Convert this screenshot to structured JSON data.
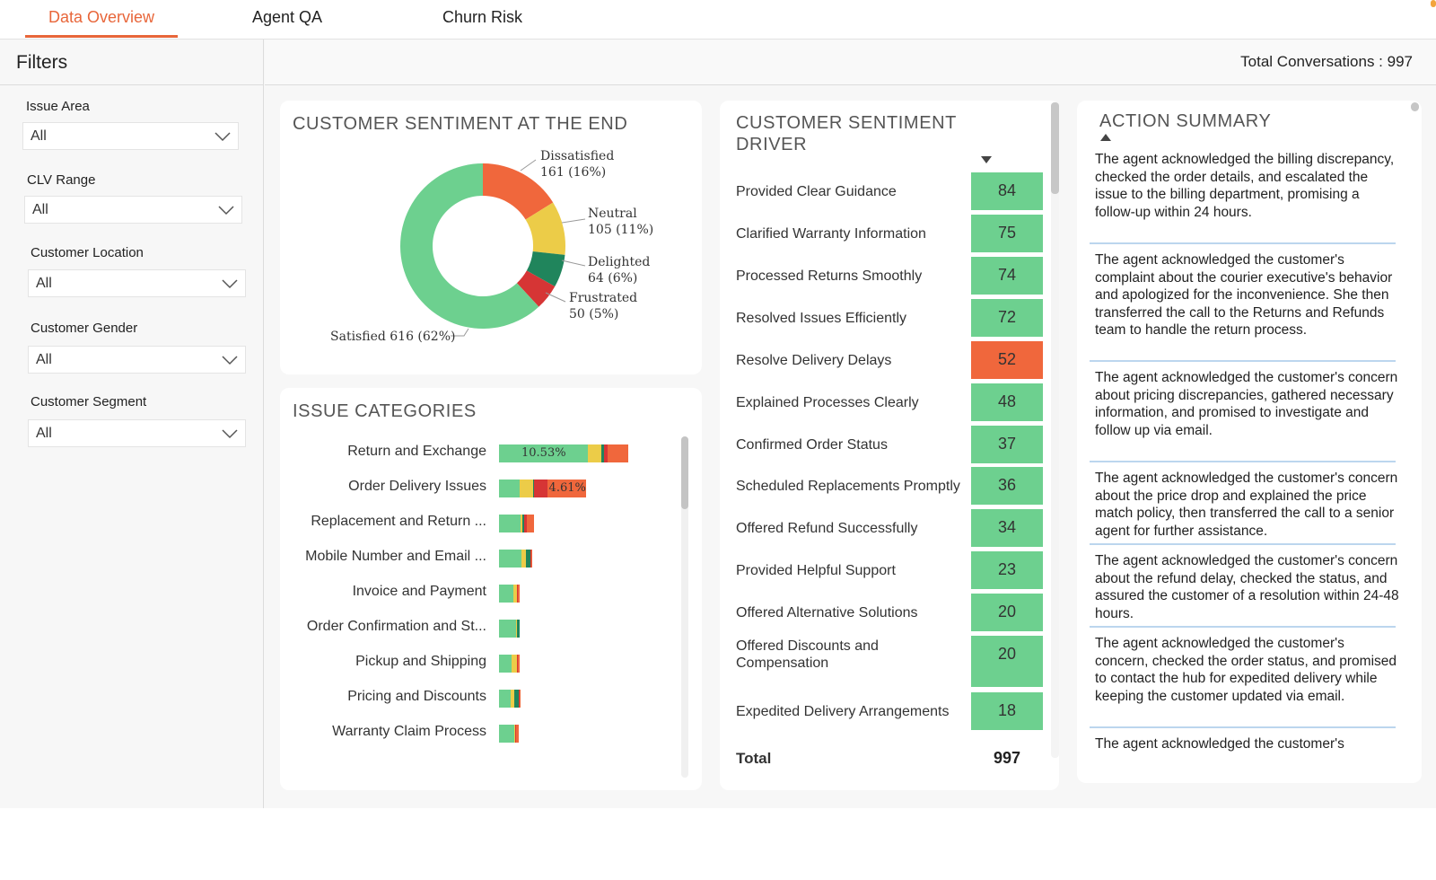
{
  "tabs": [
    "Data Overview",
    "Agent QA",
    "Churn Risk"
  ],
  "active_tab": "Data Overview",
  "filters": {
    "title": "Filters",
    "items": [
      {
        "label": "Issue Area",
        "value": "All"
      },
      {
        "label": "CLV Range",
        "value": "All"
      },
      {
        "label": "Customer Location",
        "value": "All"
      },
      {
        "label": "Customer Gender",
        "value": "All"
      },
      {
        "label": "Customer Segment",
        "value": "All"
      }
    ]
  },
  "header": {
    "total_conversations": "Total Conversations : 997"
  },
  "colors": {
    "accent": "#e8663a",
    "satisfied": "#6dd08f",
    "dissatisfied": "#f0673c",
    "neutral": "#eccc48",
    "delighted": "#20855c",
    "frustrated": "#d63535"
  },
  "sentiment": {
    "title": "CUSTOMER SENTIMENT AT THE END",
    "chart_data": {
      "type": "pie",
      "title": "CUSTOMER SENTIMENT AT THE END",
      "labels": [
        "Satisfied",
        "Dissatisfied",
        "Neutral",
        "Delighted",
        "Frustrated"
      ],
      "values": [
        616,
        161,
        105,
        64,
        50
      ],
      "label_lines": [
        [
          "Satisfied 616 (62%)"
        ],
        [
          "Dissatisfied",
          "161 (16%)"
        ],
        [
          "Neutral",
          "105 (11%)"
        ],
        [
          "Delighted",
          "64 (6%)"
        ],
        [
          "Frustrated",
          "50 (5%)"
        ]
      ]
    }
  },
  "issues": {
    "title": "ISSUE CATEGORIES",
    "chart_data": {
      "type": "bar",
      "orientation": "horizontal",
      "stacked": true,
      "percent_unit": "% of all 997 conversations",
      "series_order": [
        "Satisfied",
        "Neutral",
        "Delighted",
        "Frustrated",
        "Dissatisfied"
      ],
      "categories": [
        {
          "label": "Return and Exchange",
          "parts": [
            10.53,
            1.6,
            0.3,
            0.4,
            2.5
          ],
          "seg_label": {
            "index": 0,
            "text": "10.53%"
          }
        },
        {
          "label": "Order Delivery Issues",
          "parts": [
            2.4,
            1.6,
            0.2,
            1.5,
            4.61
          ],
          "seg_label": {
            "index": 4,
            "text": "4.61%"
          }
        },
        {
          "label": "Replacement and Return ...",
          "parts": [
            2.5,
            0.3,
            0.2,
            0.3,
            0.8
          ]
        },
        {
          "label": "Mobile Number and Email ...",
          "parts": [
            2.7,
            0.5,
            0.5,
            0.1,
            0.1
          ]
        },
        {
          "label": "Invoice and Payment",
          "parts": [
            1.7,
            0.4,
            0.0,
            0.1,
            0.3
          ]
        },
        {
          "label": "Order Confirmation and St...",
          "parts": [
            2.0,
            0.1,
            0.3,
            0.0,
            0.0
          ]
        },
        {
          "label": "Pickup and Shipping",
          "parts": [
            1.5,
            0.6,
            0.0,
            0.1,
            0.3
          ]
        },
        {
          "label": "Pricing and Discounts",
          "parts": [
            1.4,
            0.4,
            0.5,
            0.1,
            0.1
          ]
        },
        {
          "label": "Warranty Claim Process",
          "parts": [
            1.8,
            0.1,
            0.0,
            0.1,
            0.3
          ]
        }
      ]
    }
  },
  "driver": {
    "title_lines": [
      "CUSTOMER SENTIMENT",
      "DRIVER"
    ],
    "total_label": "Total",
    "total_value": "997",
    "rows": [
      {
        "label": "Provided Clear Guidance",
        "value": "84",
        "color": "#6dd08f"
      },
      {
        "label": "Clarified Warranty Information",
        "value": "75",
        "color": "#6dd08f"
      },
      {
        "label": "Processed Returns Smoothly",
        "value": "74",
        "color": "#6dd08f"
      },
      {
        "label": "Resolved Issues Efficiently",
        "value": "72",
        "color": "#6dd08f"
      },
      {
        "label": "Resolve Delivery Delays",
        "value": "52",
        "color": "#f0673c"
      },
      {
        "label": "Explained Processes Clearly",
        "value": "48",
        "color": "#6dd08f"
      },
      {
        "label": "Confirmed Order Status",
        "value": "37",
        "color": "#6dd08f"
      },
      {
        "label": "Scheduled Replacements Promptly",
        "value": "36",
        "color": "#6dd08f"
      },
      {
        "label": "Offered Refund Successfully",
        "value": "34",
        "color": "#6dd08f"
      },
      {
        "label": "Provided Helpful Support",
        "value": "23",
        "color": "#6dd08f"
      },
      {
        "label": "Offered Alternative Solutions",
        "value": "20",
        "color": "#6dd08f"
      },
      {
        "label": "Offered Discounts and Compensation",
        "value": "20",
        "color": "#6dd08f"
      },
      {
        "label": "Expedited Delivery Arrangements",
        "value": "18",
        "color": "#6dd08f"
      }
    ]
  },
  "summary": {
    "title": "ACTION SUMMARY",
    "items": [
      "The agent acknowledged the billing discrepancy, checked the order details, and escalated the issue to the billing department, promising a follow-up within 24 hours.",
      "The agent acknowledged the customer's complaint about the courier executive's behavior and apologized for the inconvenience. She then transferred the call to the Returns and Refunds team to handle the return process.",
      "The agent acknowledged the customer's concern about pricing discrepancies, gathered necessary information, and promised to investigate and follow up via email.",
      "The agent acknowledged the customer's concern about the price drop and explained the price match policy, then transferred the call to a senior agent for further assistance.",
      "The agent acknowledged the customer's concern about the refund delay, checked the status, and assured the customer of a resolution within 24-48 hours.",
      "The agent acknowledged the customer's concern, checked the order status, and promised to contact the hub for expedited delivery while keeping the customer updated via email.",
      "The agent acknowledged the customer's"
    ]
  }
}
